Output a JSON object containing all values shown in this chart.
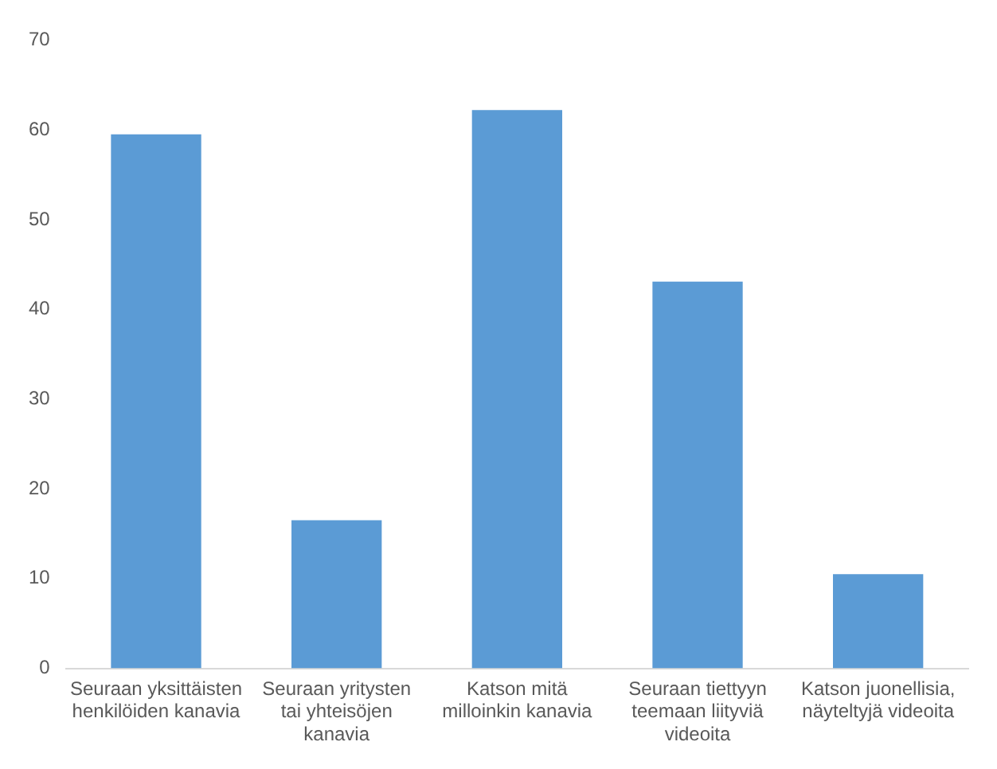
{
  "chart_data": {
    "type": "bar",
    "categories": [
      "Seuraan yksittäisten henkilöiden kanavia",
      "Seuraan yritysten tai yhteisöjen kanavia",
      "Katson mitä milloinkin kanavia",
      "Seuraan tiettyyn teemaan liityviä videoita",
      "Katson juonellisia, näyteltyjä videoita"
    ],
    "values": [
      59.5,
      16.5,
      62.2,
      43.1,
      10.5
    ],
    "color": "#5b9bd5",
    "ylim": [
      0,
      70
    ],
    "yticks": [
      0,
      10,
      20,
      30,
      40,
      50,
      60,
      70
    ],
    "grid": false
  }
}
